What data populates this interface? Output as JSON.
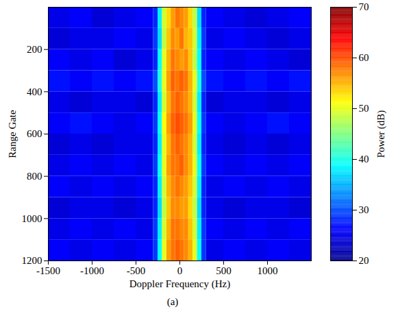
{
  "chart_data": {
    "type": "heatmap",
    "x_label": "Doppler Frequency (Hz)",
    "y_label": "Range Gate",
    "caption": "(a)",
    "xlim": [
      -1500,
      1500
    ],
    "xticks": [
      -1500,
      -1000,
      -500,
      0,
      500,
      1000
    ],
    "ylim": [
      1200,
      0
    ],
    "yticks": [
      200,
      400,
      600,
      800,
      1000,
      1200
    ],
    "doppler_edges": [
      -1500,
      -1250,
      -1000,
      -750,
      -500,
      -300,
      -250,
      -200,
      -150,
      -100,
      -50,
      0,
      50,
      100,
      150,
      200,
      250,
      300,
      500,
      750,
      1000,
      1250,
      1500
    ],
    "range_gate_edges": [
      0,
      100,
      200,
      300,
      400,
      500,
      600,
      700,
      800,
      900,
      1000,
      1100,
      1200
    ],
    "power": [
      [
        25,
        26,
        24,
        25,
        26,
        28,
        38,
        49,
        53,
        56,
        58,
        57,
        56,
        53,
        48,
        37,
        28,
        26,
        25,
        24,
        25,
        26
      ],
      [
        24,
        25,
        25,
        26,
        25,
        29,
        37,
        48,
        54,
        57,
        56,
        58,
        55,
        54,
        49,
        38,
        29,
        25,
        26,
        25,
        24,
        25
      ],
      [
        26,
        25,
        26,
        24,
        25,
        28,
        39,
        50,
        55,
        58,
        57,
        56,
        57,
        54,
        48,
        39,
        28,
        26,
        25,
        26,
        25,
        24
      ],
      [
        27,
        26,
        27,
        26,
        27,
        30,
        40,
        50,
        56,
        59,
        58,
        59,
        58,
        55,
        50,
        40,
        30,
        27,
        26,
        27,
        26,
        27
      ],
      [
        25,
        24,
        25,
        25,
        24,
        28,
        38,
        49,
        55,
        58,
        59,
        58,
        57,
        55,
        49,
        38,
        28,
        24,
        25,
        25,
        24,
        25
      ],
      [
        26,
        27,
        26,
        25,
        26,
        29,
        39,
        51,
        56,
        59,
        60,
        59,
        58,
        56,
        50,
        39,
        29,
        26,
        25,
        26,
        27,
        26
      ],
      [
        24,
        25,
        24,
        25,
        25,
        28,
        38,
        50,
        55,
        58,
        59,
        58,
        57,
        55,
        49,
        38,
        28,
        25,
        24,
        25,
        24,
        25
      ],
      [
        25,
        26,
        25,
        26,
        25,
        29,
        39,
        50,
        56,
        58,
        58,
        59,
        57,
        55,
        50,
        39,
        29,
        26,
        25,
        26,
        25,
        26
      ],
      [
        26,
        25,
        26,
        25,
        26,
        28,
        38,
        49,
        55,
        57,
        58,
        57,
        56,
        54,
        49,
        38,
        28,
        25,
        26,
        25,
        26,
        25
      ],
      [
        24,
        25,
        25,
        24,
        25,
        28,
        37,
        48,
        54,
        57,
        57,
        56,
        56,
        53,
        48,
        37,
        28,
        25,
        24,
        25,
        25,
        24
      ],
      [
        25,
        26,
        25,
        26,
        25,
        29,
        38,
        49,
        55,
        58,
        58,
        57,
        57,
        54,
        49,
        38,
        29,
        26,
        25,
        26,
        25,
        26
      ],
      [
        26,
        25,
        26,
        25,
        26,
        29,
        39,
        50,
        56,
        58,
        59,
        58,
        57,
        55,
        50,
        39,
        29,
        25,
        26,
        25,
        26,
        25
      ]
    ],
    "colorbar": {
      "label": "Power (dB)",
      "range": [
        20,
        70
      ],
      "ticks": [
        20,
        30,
        40,
        50,
        60,
        70
      ]
    }
  }
}
